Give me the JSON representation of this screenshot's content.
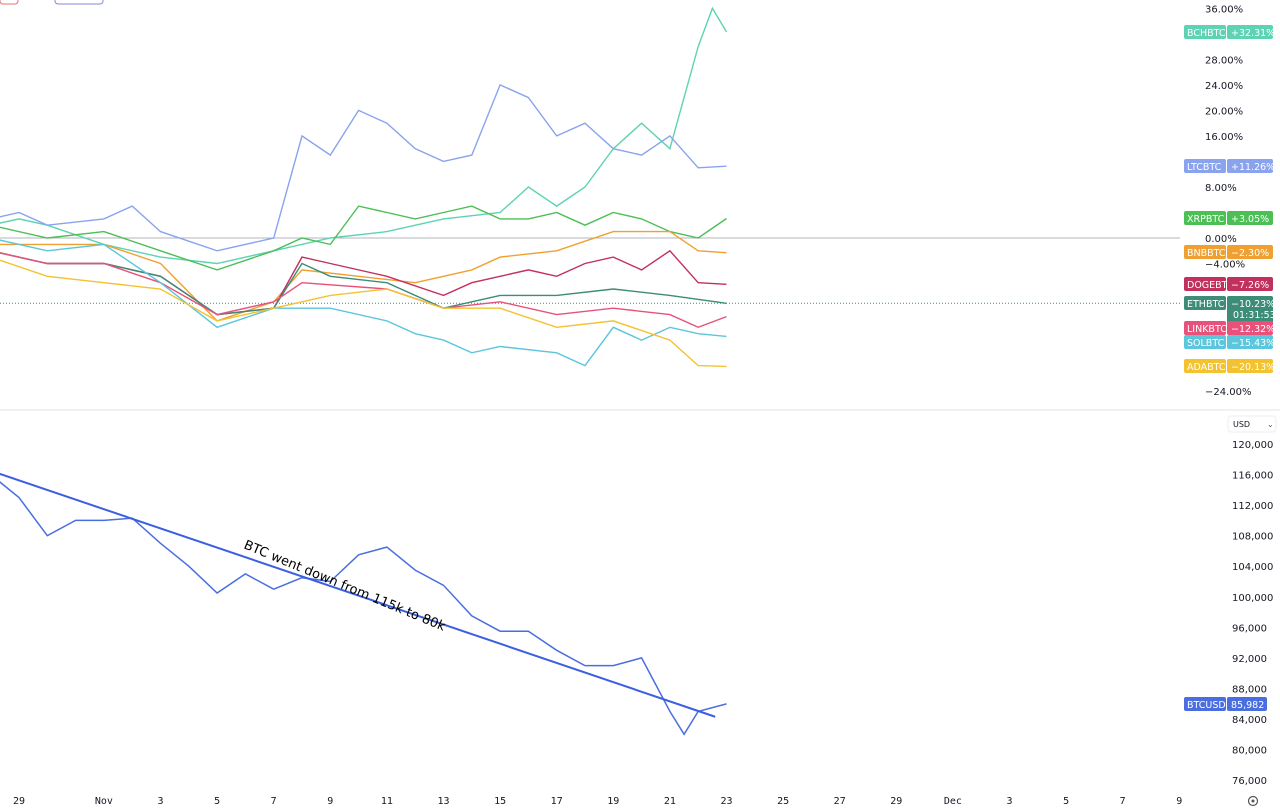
{
  "chart_data": [
    {
      "type": "line",
      "title": "",
      "y_unit": "%",
      "ylim": [
        -27,
        37
      ],
      "y_ticks": [
        "36.00%",
        "28.00%",
        "24.00%",
        "20.00%",
        "16.00%",
        "8.00%",
        "0.00%",
        "−4.00%",
        "−24.00%"
      ],
      "y_tick_values": [
        36,
        28,
        24,
        20,
        16,
        8,
        0,
        -4,
        -24
      ],
      "grid": false,
      "baseline": 0,
      "series": [
        {
          "name": "BCHBTC",
          "last": "+32.31%",
          "color": "#5dd3b3",
          "points": [
            [
              "Oct 28",
              2
            ],
            [
              "Oct 29",
              3
            ],
            [
              "Oct 30",
              2
            ],
            [
              "Nov 1",
              -1
            ],
            [
              "Nov 3",
              -3
            ],
            [
              "Nov 5",
              -4
            ],
            [
              "Nov 7",
              -2
            ],
            [
              "Nov 9",
              0
            ],
            [
              "Nov 11",
              1
            ],
            [
              "Nov 13",
              3
            ],
            [
              "Nov 15",
              4
            ],
            [
              "Nov 16",
              8
            ],
            [
              "Nov 17",
              5
            ],
            [
              "Nov 18",
              8
            ],
            [
              "Nov 19",
              14
            ],
            [
              "Nov 20",
              18
            ],
            [
              "Nov 21",
              14
            ],
            [
              "Nov 22",
              30
            ],
            [
              "Nov 22.5",
              36
            ],
            [
              "Nov 23",
              32.31
            ]
          ]
        },
        {
          "name": "LTCBTC",
          "last": "+11.26%",
          "color": "#8aa3ee",
          "points": [
            [
              "Oct 28",
              3
            ],
            [
              "Oct 29",
              4
            ],
            [
              "Oct 30",
              2
            ],
            [
              "Nov 1",
              3
            ],
            [
              "Nov 2",
              5
            ],
            [
              "Nov 3",
              1
            ],
            [
              "Nov 5",
              -2
            ],
            [
              "Nov 7",
              0
            ],
            [
              "Nov 8",
              16
            ],
            [
              "Nov 9",
              13
            ],
            [
              "Nov 10",
              20
            ],
            [
              "Nov 11",
              18
            ],
            [
              "Nov 12",
              14
            ],
            [
              "Nov 13",
              12
            ],
            [
              "Nov 14",
              13
            ],
            [
              "Nov 15",
              24
            ],
            [
              "Nov 16",
              22
            ],
            [
              "Nov 17",
              16
            ],
            [
              "Nov 18",
              18
            ],
            [
              "Nov 19",
              14
            ],
            [
              "Nov 20",
              13
            ],
            [
              "Nov 21",
              16
            ],
            [
              "Nov 22",
              11
            ],
            [
              "Nov 23",
              11.26
            ]
          ]
        },
        {
          "name": "XRPBTC",
          "last": "+3.05%",
          "color": "#4cbf55",
          "points": [
            [
              "Oct 28",
              2
            ],
            [
              "Oct 30",
              0
            ],
            [
              "Nov 1",
              1
            ],
            [
              "Nov 3",
              -2
            ],
            [
              "Nov 5",
              -5
            ],
            [
              "Nov 7",
              -2
            ],
            [
              "Nov 8",
              0
            ],
            [
              "Nov 9",
              -1
            ],
            [
              "Nov 10",
              5
            ],
            [
              "Nov 11",
              4
            ],
            [
              "Nov 12",
              3
            ],
            [
              "Nov 13",
              4
            ],
            [
              "Nov 14",
              5
            ],
            [
              "Nov 15",
              3
            ],
            [
              "Nov 16",
              3
            ],
            [
              "Nov 17",
              4
            ],
            [
              "Nov 18",
              2
            ],
            [
              "Nov 19",
              4
            ],
            [
              "Nov 20",
              3
            ],
            [
              "Nov 21",
              1
            ],
            [
              "Nov 22",
              0
            ],
            [
              "Nov 23",
              3.05
            ]
          ]
        },
        {
          "name": "BNBBTC",
          "last": "−2.30%",
          "color": "#f0a030",
          "points": [
            [
              "Oct 28",
              -1
            ],
            [
              "Nov 1",
              -1
            ],
            [
              "Nov 3",
              -4
            ],
            [
              "Nov 5",
              -13
            ],
            [
              "Nov 7",
              -10
            ],
            [
              "Nov 8",
              -5
            ],
            [
              "Nov 10",
              -6
            ],
            [
              "Nov 12",
              -7
            ],
            [
              "Nov 13",
              -6
            ],
            [
              "Nov 14",
              -5
            ],
            [
              "Nov 15",
              -3
            ],
            [
              "Nov 17",
              -2
            ],
            [
              "Nov 19",
              1
            ],
            [
              "Nov 21",
              1
            ],
            [
              "Nov 22",
              -2
            ],
            [
              "Nov 23",
              -2.3
            ]
          ]
        },
        {
          "name": "DOGEBTC",
          "last": "−7.26%",
          "color": "#c2305e",
          "points": [
            [
              "Oct 28",
              -2
            ],
            [
              "Oct 30",
              -4
            ],
            [
              "Nov 1",
              -4
            ],
            [
              "Nov 3",
              -6
            ],
            [
              "Nov 5",
              -12
            ],
            [
              "Nov 7",
              -11
            ],
            [
              "Nov 8",
              -3
            ],
            [
              "Nov 9",
              -4
            ],
            [
              "Nov 11",
              -6
            ],
            [
              "Nov 13",
              -9
            ],
            [
              "Nov 14",
              -7
            ],
            [
              "Nov 15",
              -6
            ],
            [
              "Nov 16",
              -5
            ],
            [
              "Nov 17",
              -6
            ],
            [
              "Nov 18",
              -4
            ],
            [
              "Nov 19",
              -3
            ],
            [
              "Nov 20",
              -5
            ],
            [
              "Nov 21",
              -2
            ],
            [
              "Nov 22",
              -7
            ],
            [
              "Nov 23",
              -7.26
            ]
          ]
        },
        {
          "name": "ETHBTC",
          "last": "−10.23%",
          "countdown": "01:31:53",
          "color": "#3c8c78",
          "points": [
            [
              "Oct 28",
              -2
            ],
            [
              "Oct 30",
              -4
            ],
            [
              "Nov 1",
              -4
            ],
            [
              "Nov 3",
              -6
            ],
            [
              "Nov 5",
              -12
            ],
            [
              "Nov 7",
              -11
            ],
            [
              "Nov 8",
              -4
            ],
            [
              "Nov 9",
              -6
            ],
            [
              "Nov 11",
              -7
            ],
            [
              "Nov 13",
              -11
            ],
            [
              "Nov 14",
              -10
            ],
            [
              "Nov 15",
              -9
            ],
            [
              "Nov 17",
              -9
            ],
            [
              "Nov 19",
              -8
            ],
            [
              "Nov 21",
              -9
            ],
            [
              "Nov 23",
              -10.23
            ]
          ]
        },
        {
          "name": "LINKBTC",
          "last": "−12.32%",
          "color": "#e8527a",
          "points": [
            [
              "Oct 28",
              -2
            ],
            [
              "Oct 30",
              -4
            ],
            [
              "Nov 1",
              -4
            ],
            [
              "Nov 3",
              -7
            ],
            [
              "Nov 5",
              -12
            ],
            [
              "Nov 7",
              -10
            ],
            [
              "Nov 8",
              -7
            ],
            [
              "Nov 11",
              -8
            ],
            [
              "Nov 13",
              -11
            ],
            [
              "Nov 15",
              -10
            ],
            [
              "Nov 17",
              -12
            ],
            [
              "Nov 19",
              -11
            ],
            [
              "Nov 21",
              -12
            ],
            [
              "Nov 22",
              -14
            ],
            [
              "Nov 23",
              -12.32
            ]
          ]
        },
        {
          "name": "SOLBTC",
          "last": "−15.43%",
          "color": "#5bc6dc",
          "points": [
            [
              "Oct 28",
              0
            ],
            [
              "Oct 30",
              -2
            ],
            [
              "Nov 1",
              -1
            ],
            [
              "Nov 3",
              -7
            ],
            [
              "Nov 5",
              -14
            ],
            [
              "Nov 7",
              -11
            ],
            [
              "Nov 9",
              -11
            ],
            [
              "Nov 11",
              -13
            ],
            [
              "Nov 12",
              -15
            ],
            [
              "Nov 13",
              -16
            ],
            [
              "Nov 14",
              -18
            ],
            [
              "Nov 15",
              -17
            ],
            [
              "Nov 17",
              -18
            ],
            [
              "Nov 18",
              -20
            ],
            [
              "Nov 19",
              -14
            ],
            [
              "Nov 20",
              -16
            ],
            [
              "Nov 21",
              -14
            ],
            [
              "Nov 22",
              -15
            ],
            [
              "Nov 23",
              -15.43
            ]
          ]
        },
        {
          "name": "ADABTC",
          "last": "−20.13%",
          "color": "#f2c230",
          "points": [
            [
              "Oct 28",
              -3
            ],
            [
              "Oct 30",
              -6
            ],
            [
              "Nov 1",
              -7
            ],
            [
              "Nov 3",
              -8
            ],
            [
              "Nov 5",
              -13
            ],
            [
              "Nov 7",
              -11
            ],
            [
              "Nov 9",
              -9
            ],
            [
              "Nov 11",
              -8
            ],
            [
              "Nov 13",
              -11
            ],
            [
              "Nov 15",
              -11
            ],
            [
              "Nov 17",
              -14
            ],
            [
              "Nov 19",
              -13
            ],
            [
              "Nov 21",
              -16
            ],
            [
              "Nov 22",
              -20
            ],
            [
              "Nov 23",
              -20.13
            ]
          ]
        }
      ]
    },
    {
      "type": "line",
      "currency": "USD",
      "ylim": [
        74500,
        121500
      ],
      "y_ticks": [
        "120,000",
        "116,000",
        "112,000",
        "108,000",
        "104,000",
        "100,000",
        "96,000",
        "92,000",
        "88,000",
        "84,000",
        "80,000",
        "76,000"
      ],
      "y_tick_values": [
        120000,
        116000,
        112000,
        108000,
        104000,
        100000,
        96000,
        92000,
        88000,
        84000,
        80000,
        76000
      ],
      "series": [
        {
          "name": "BTCUSD",
          "last": "85,982",
          "color": "#4a6ee0",
          "points": [
            [
              "Oct 28",
              116000
            ],
            [
              "Oct 29",
              113000
            ],
            [
              "Oct 30",
              108000
            ],
            [
              "Oct 31",
              110000
            ],
            [
              "Nov 1",
              110000
            ],
            [
              "Nov 2",
              110300
            ],
            [
              "Nov 3",
              107000
            ],
            [
              "Nov 4",
              104000
            ],
            [
              "Nov 5",
              100500
            ],
            [
              "Nov 6",
              103000
            ],
            [
              "Nov 7",
              101000
            ],
            [
              "Nov 8",
              102500
            ],
            [
              "Nov 9",
              102000
            ],
            [
              "Nov 10",
              105500
            ],
            [
              "Nov 11",
              106500
            ],
            [
              "Nov 12",
              103500
            ],
            [
              "Nov 13",
              101500
            ],
            [
              "Nov 14",
              97500
            ],
            [
              "Nov 15",
              95500
            ],
            [
              "Nov 16",
              95500
            ],
            [
              "Nov 17",
              93000
            ],
            [
              "Nov 18",
              91000
            ],
            [
              "Nov 19",
              91000
            ],
            [
              "Nov 20",
              92000
            ],
            [
              "Nov 21",
              85000
            ],
            [
              "Nov 21.5",
              82000
            ],
            [
              "Nov 22",
              85000
            ],
            [
              "Nov 23",
              85982
            ]
          ]
        }
      ],
      "trendline": {
        "from": [
          "Oct 28",
          116500
        ],
        "to": [
          "Nov 22.6",
          84300
        ],
        "color": "#3b5fe0"
      },
      "annotation": "BTC went down from 115k to 80k"
    }
  ],
  "x_axis": {
    "ticks": [
      [
        "Oct 29",
        "29"
      ],
      [
        "Nov 1",
        "Nov"
      ],
      [
        "Nov 3",
        "3"
      ],
      [
        "Nov 5",
        "5"
      ],
      [
        "Nov 7",
        "7"
      ],
      [
        "Nov 9",
        "9"
      ],
      [
        "Nov 11",
        "11"
      ],
      [
        "Nov 13",
        "13"
      ],
      [
        "Nov 15",
        "15"
      ],
      [
        "Nov 17",
        "17"
      ],
      [
        "Nov 19",
        "19"
      ],
      [
        "Nov 21",
        "21"
      ],
      [
        "Nov 23",
        "23"
      ],
      [
        "Nov 25",
        "25"
      ],
      [
        "Nov 27",
        "27"
      ],
      [
        "Nov 29",
        "29"
      ],
      [
        "Dec 1",
        "Dec"
      ],
      [
        "Dec 3",
        "3"
      ],
      [
        "Dec 5",
        "5"
      ],
      [
        "Dec 7",
        "7"
      ],
      [
        "Dec 9",
        "9"
      ]
    ]
  },
  "settings_icon": "gear-icon"
}
